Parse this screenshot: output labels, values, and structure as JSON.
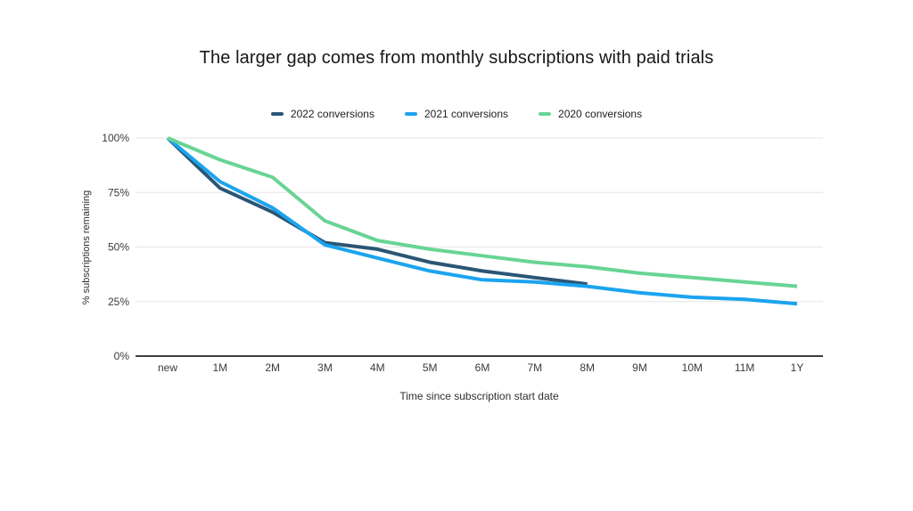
{
  "title": "The larger gap comes from monthly subscriptions with paid trials",
  "chart_data": {
    "type": "line",
    "title": "The larger gap comes from monthly subscriptions with paid trials",
    "xlabel": "Time since subscription start date",
    "ylabel": "% subscriptions remaining",
    "categories": [
      "new",
      "1M",
      "2M",
      "3M",
      "4M",
      "5M",
      "6M",
      "7M",
      "8M",
      "9M",
      "10M",
      "11M",
      "1Y"
    ],
    "y_ticks": [
      0,
      25,
      50,
      75,
      100
    ],
    "y_tick_labels": [
      "0%",
      "25%",
      "50%",
      "75%",
      "100%"
    ],
    "ylim": [
      0,
      100
    ],
    "grid": true,
    "legend_position": "top",
    "series": [
      {
        "name": "2022 conversions",
        "color": "#2b5675",
        "values": [
          100,
          77,
          66,
          52,
          49,
          43,
          39,
          36,
          33
        ]
      },
      {
        "name": "2021 conversions",
        "color": "#1ba4ef",
        "values": [
          100,
          80,
          68,
          51,
          45,
          39,
          35,
          34,
          32,
          29,
          27,
          26,
          24
        ]
      },
      {
        "name": "2020 conversions",
        "color": "#68d494",
        "values": [
          100,
          90,
          82,
          62,
          53,
          49,
          46,
          43,
          41,
          38,
          36,
          34,
          32
        ]
      }
    ],
    "colors": {
      "gridline": "#e6e6e6",
      "axis_line": "#3d3d3d",
      "tick_text": "#3b3b3b",
      "title_text": "#171717"
    }
  }
}
